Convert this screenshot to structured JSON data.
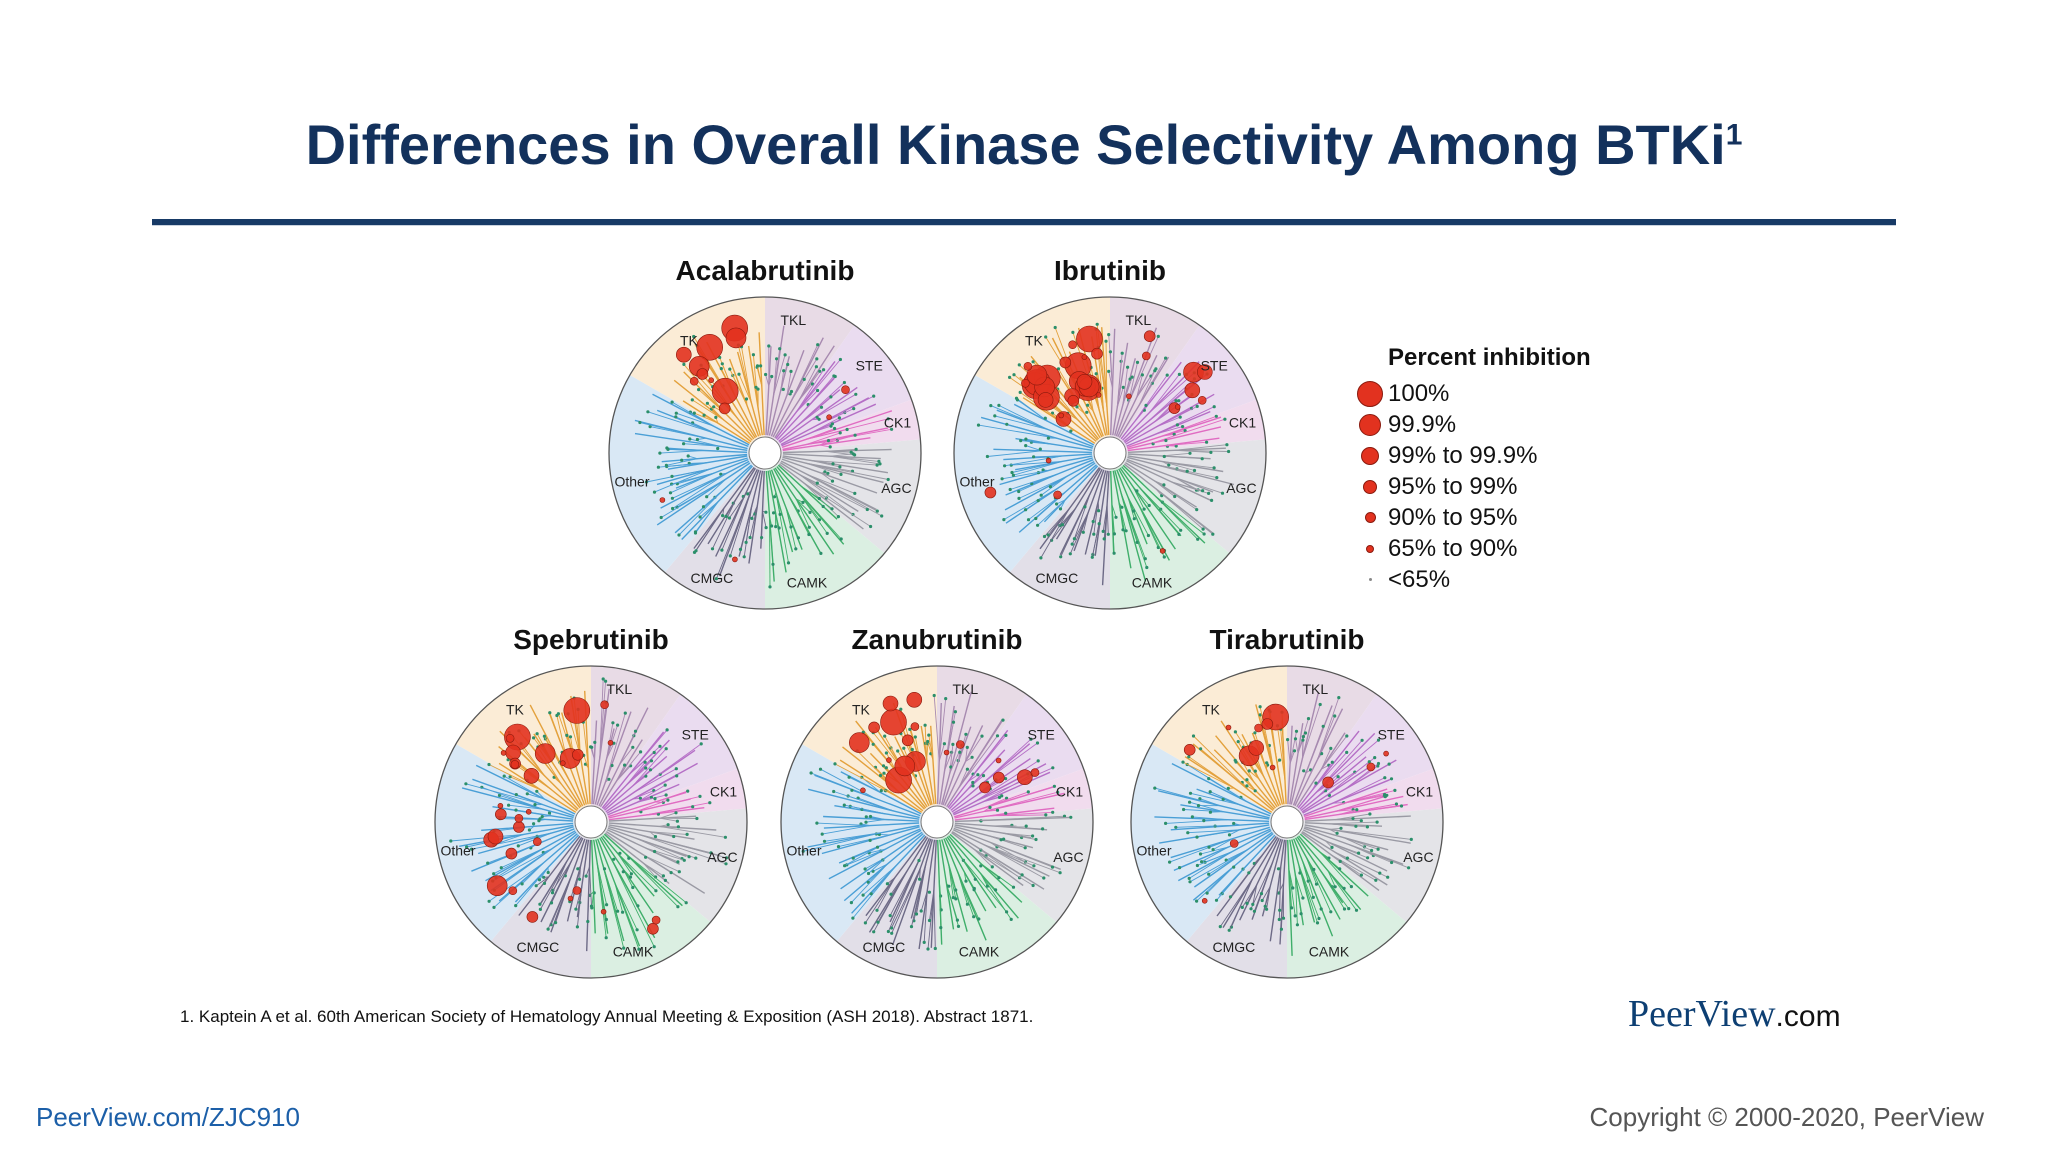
{
  "slide": {
    "title": "Differences in Overall Kinase Selectivity Among BTKi",
    "title_superscript": "1",
    "footnote": "1. Kaptein A et al. 60th American Society of Hematology Annual Meeting & Exposition (ASH 2018). Abstract 1871.",
    "brand_name": "PeerView",
    "brand_domain": ".com",
    "url": "PeerView.com/ZJC910",
    "copyright": "Copyright © 2000-2020, PeerView"
  },
  "colors": {
    "title": "#13315c",
    "rule": "#173a66",
    "hit_dot": "#e2321f",
    "TKL": "#e8dbe6",
    "STE": "#eadcf0",
    "CK1": "#f1dcee",
    "AGC": "#e4e4e8",
    "CAMK": "#dbefe2",
    "CMGC": "#e2dfe8",
    "Other": "#d9e8f5",
    "TK": "#fbecd6"
  },
  "kinase_groups": [
    "TKL",
    "STE",
    "CK1",
    "AGC",
    "CAMK",
    "CMGC",
    "Other",
    "TK"
  ],
  "legend": {
    "title": "Percent inhibition",
    "items": [
      "100%",
      "99.9%",
      "99% to 99.9%",
      "95% to 99%",
      "90% to 95%",
      "65% to 90%",
      "<65%"
    ]
  },
  "dendrograms": [
    {
      "name": "Acalabrutinib",
      "hits": {
        "TK": [
          3,
          2,
          1,
          2,
          1,
          1
        ],
        "STE": [
          0,
          0,
          0,
          0,
          1,
          1
        ],
        "Other": [
          0,
          0,
          0,
          0,
          0,
          1
        ],
        "CMGC": [
          0,
          0,
          0,
          0,
          0,
          1
        ]
      }
    },
    {
      "name": "Ibrutinib",
      "hits": {
        "TK": [
          7,
          5,
          4,
          3,
          3,
          3
        ],
        "STE": [
          0,
          1,
          2,
          1,
          1,
          1
        ],
        "TKL": [
          0,
          0,
          0,
          1,
          1,
          1
        ],
        "Other": [
          0,
          0,
          0,
          1,
          1,
          1
        ],
        "CAMK": [
          0,
          0,
          0,
          0,
          0,
          1
        ]
      }
    },
    {
      "name": "Spebrutinib",
      "hits": {
        "TK": [
          2,
          2,
          2,
          2,
          2,
          2
        ],
        "Other": [
          0,
          1,
          2,
          3,
          3,
          2
        ],
        "CMGC": [
          0,
          0,
          0,
          1,
          1,
          1
        ],
        "CAMK": [
          0,
          0,
          0,
          1,
          1,
          1
        ],
        "TKL": [
          0,
          0,
          0,
          0,
          1,
          1
        ]
      }
    },
    {
      "name": "Zanubrutinib",
      "hits": {
        "TK": [
          2,
          3,
          2,
          2,
          1,
          1
        ],
        "STE": [
          0,
          0,
          1,
          2,
          1,
          1
        ],
        "TKL": [
          0,
          0,
          0,
          0,
          1,
          1
        ],
        "Other": [
          0,
          0,
          0,
          0,
          0,
          1
        ]
      }
    },
    {
      "name": "Tirabrutinib",
      "hits": {
        "TK": [
          1,
          1,
          1,
          2,
          1,
          2
        ],
        "STE": [
          0,
          0,
          0,
          1,
          1,
          1
        ],
        "Other": [
          0,
          0,
          0,
          0,
          1,
          1
        ]
      }
    }
  ]
}
